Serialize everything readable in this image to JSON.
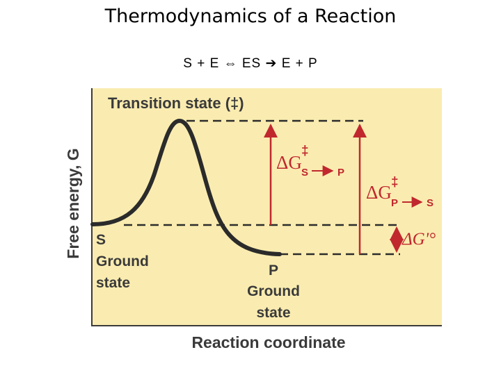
{
  "slide": {
    "title": "Thermodynamics of a Reaction",
    "equation": {
      "parts": [
        "S + E",
        "ES",
        "E + P"
      ]
    }
  },
  "diagram": {
    "y_axis_label": "Free energy, G",
    "x_axis_label": "Reaction coordinate",
    "transition_state_label": "Transition state (‡)",
    "substrate": {
      "symbol": "S",
      "line1": "Ground",
      "line2": "state"
    },
    "product": {
      "symbol": "P",
      "line1": "Ground",
      "line2": "state"
    },
    "dg_s_to_p": {
      "delta_g": "ΔG",
      "superscript": "‡",
      "from": "S",
      "to": "P"
    },
    "dg_p_to_s": {
      "delta_g": "ΔG",
      "superscript": "‡",
      "from": "P",
      "to": "S"
    },
    "dg_standard": "ΔG'°",
    "colors": {
      "panel_background": "#faecb0",
      "curve": "#2b2b2b",
      "arrow_red": "#c0282e",
      "text": "#3a3a3a"
    }
  }
}
